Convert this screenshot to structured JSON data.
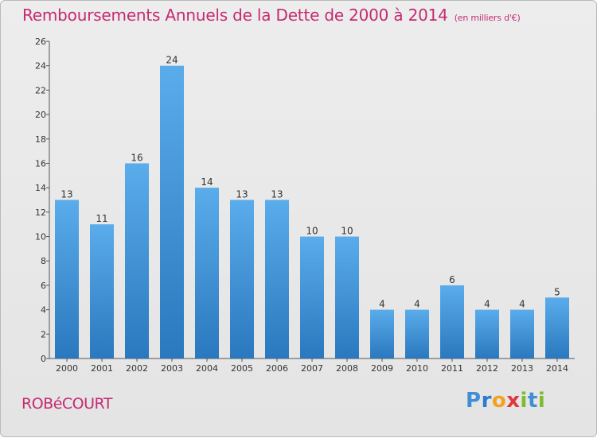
{
  "title": "Remboursements Annuels de la Dette de 2000 à 2014",
  "subtitle": "(en milliers d'€)",
  "commune": "ROBéCOURT",
  "logo": {
    "letters": [
      "P",
      "r",
      "o",
      "x",
      "i",
      "t",
      "i"
    ],
    "colors": [
      "#3f8ed6",
      "#2b7bd0",
      "#f3a21b",
      "#e0383e",
      "#7cbc2f",
      "#3f8ed6",
      "#7cbc2f"
    ]
  },
  "colors": {
    "title": "#c62a73",
    "bar_top": "#5aaceb",
    "bar_bottom": "#2a78be",
    "background": "#e8e8e8"
  },
  "chart_data": {
    "type": "bar",
    "categories": [
      "2000",
      "2001",
      "2002",
      "2003",
      "2004",
      "2005",
      "2006",
      "2007",
      "2008",
      "2009",
      "2010",
      "2011",
      "2012",
      "2013",
      "2014"
    ],
    "values": [
      13,
      11,
      16,
      24,
      14,
      13,
      13,
      10,
      10,
      4,
      4,
      6,
      4,
      4,
      5
    ],
    "ylim": [
      0,
      26
    ],
    "yticks": [
      0,
      2,
      4,
      6,
      8,
      10,
      12,
      14,
      16,
      18,
      20,
      22,
      24,
      26
    ],
    "grid": false,
    "data_labels": true
  }
}
